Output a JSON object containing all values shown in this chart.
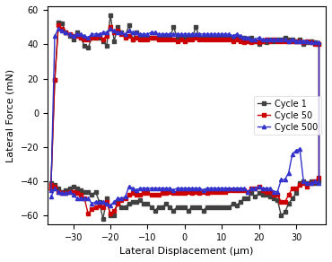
{
  "title": "",
  "xlabel": "Lateral Displacement (μm)",
  "ylabel": "Lateral Force (mN)",
  "xlim": [
    -37,
    38
  ],
  "ylim": [
    -65,
    62
  ],
  "xticks": [
    -30,
    -20,
    -10,
    0,
    10,
    20,
    30
  ],
  "yticks": [
    -60,
    -40,
    -20,
    0,
    20,
    40,
    60
  ],
  "legend_labels": [
    "Cycle 1",
    "Cycle 50",
    "Cycle 500"
  ],
  "colors": [
    "#404040",
    "#cc0000",
    "#3333cc"
  ],
  "marker": "s",
  "cycle1_x": [
    -36,
    -35,
    -34,
    -33,
    -32,
    -31,
    -30,
    -29,
    -28,
    -27,
    -26,
    -25,
    -24,
    -23,
    -22,
    -21,
    -20,
    -19,
    -18,
    -17,
    -16,
    -15,
    -14,
    -13,
    -12,
    -11,
    -10,
    -9,
    -8,
    -7,
    -6,
    -5,
    -4,
    -3,
    -2,
    -1,
    0,
    1,
    2,
    3,
    4,
    5,
    6,
    7,
    8,
    9,
    10,
    11,
    12,
    13,
    14,
    15,
    16,
    17,
    18,
    19,
    20,
    21,
    22,
    23,
    24,
    25,
    26,
    27,
    28,
    29,
    30,
    31,
    32,
    33,
    34,
    35,
    36
  ],
  "cycle1_upper": [
    -41,
    19,
    53,
    52,
    47,
    45,
    43,
    47,
    44,
    39,
    38,
    44,
    44,
    44,
    42,
    39,
    57,
    42,
    50,
    47,
    45,
    51,
    43,
    47,
    44,
    44,
    44,
    44,
    44,
    44,
    44,
    45,
    44,
    50,
    44,
    44,
    44,
    44,
    44,
    50,
    44,
    44,
    44,
    44,
    44,
    44,
    44,
    44,
    44,
    44,
    44,
    44,
    44,
    43,
    44,
    42,
    40,
    42,
    41,
    43,
    42,
    43,
    43,
    44,
    43,
    43,
    42,
    43,
    40,
    41,
    42,
    41,
    40
  ],
  "cycle1_lower": [
    -44,
    -42,
    -44,
    -46,
    -45,
    -44,
    -43,
    -44,
    -45,
    -46,
    -46,
    -48,
    -46,
    -52,
    -62,
    -50,
    -60,
    -60,
    -52,
    -55,
    -55,
    -53,
    -52,
    -52,
    -51,
    -53,
    -53,
    -55,
    -57,
    -55,
    -55,
    -53,
    -55,
    -57,
    -55,
    -55,
    -55,
    -57,
    -55,
    -55,
    -55,
    -57,
    -55,
    -55,
    -55,
    -55,
    -55,
    -55,
    -55,
    -53,
    -54,
    -52,
    -50,
    -50,
    -47,
    -49,
    -47,
    -48,
    -48,
    -49,
    -50,
    -51,
    -60,
    -58,
    -53,
    -50,
    -47,
    -41,
    -40,
    -41,
    -40,
    -41,
    -40
  ],
  "cycle50_x": [
    -36,
    -35,
    -34,
    -33,
    -32,
    -31,
    -30,
    -29,
    -28,
    -27,
    -26,
    -25,
    -24,
    -23,
    -22,
    -21,
    -20,
    -19,
    -18,
    -17,
    -16,
    -15,
    -14,
    -13,
    -12,
    -11,
    -10,
    -9,
    -8,
    -7,
    -6,
    -5,
    -4,
    -3,
    -2,
    -1,
    0,
    1,
    2,
    3,
    4,
    5,
    6,
    7,
    8,
    9,
    10,
    11,
    12,
    13,
    14,
    15,
    16,
    17,
    18,
    19,
    20,
    21,
    22,
    23,
    24,
    25,
    26,
    27,
    28,
    29,
    30,
    31,
    32,
    33,
    34,
    35,
    36
  ],
  "cycle50_upper": [
    -42,
    19,
    51,
    49,
    47,
    46,
    45,
    45,
    44,
    43,
    43,
    44,
    44,
    45,
    43,
    45,
    50,
    47,
    48,
    46,
    44,
    45,
    43,
    44,
    43,
    43,
    43,
    44,
    44,
    43,
    43,
    43,
    43,
    43,
    42,
    43,
    42,
    43,
    43,
    44,
    43,
    43,
    43,
    43,
    43,
    43,
    43,
    43,
    43,
    42,
    43,
    42,
    41,
    42,
    41,
    42,
    41,
    42,
    43,
    42,
    43,
    42,
    42,
    42,
    42,
    42,
    42,
    42,
    41,
    42,
    41,
    40,
    40
  ],
  "cycle50_lower": [
    -44,
    -43,
    -46,
    -47,
    -47,
    -46,
    -46,
    -47,
    -48,
    -50,
    -59,
    -56,
    -55,
    -54,
    -55,
    -52,
    -59,
    -57,
    -53,
    -51,
    -50,
    -48,
    -47,
    -48,
    -48,
    -47,
    -47,
    -48,
    -48,
    -48,
    -47,
    -47,
    -46,
    -47,
    -47,
    -47,
    -47,
    -46,
    -47,
    -46,
    -47,
    -46,
    -47,
    -46,
    -46,
    -46,
    -46,
    -46,
    -45,
    -45,
    -45,
    -45,
    -45,
    -46,
    -44,
    -44,
    -43,
    -45,
    -46,
    -46,
    -48,
    -48,
    -52,
    -52,
    -48,
    -44,
    -44,
    -42,
    -41,
    -43,
    -41,
    -40,
    -38
  ],
  "cycle500_x": [
    -36,
    -35,
    -34,
    -33,
    -32,
    -31,
    -30,
    -29,
    -28,
    -27,
    -26,
    -25,
    -24,
    -23,
    -22,
    -21,
    -20,
    -19,
    -18,
    -17,
    -16,
    -15,
    -14,
    -13,
    -12,
    -11,
    -10,
    -9,
    -8,
    -7,
    -6,
    -5,
    -4,
    -3,
    -2,
    -1,
    0,
    1,
    2,
    3,
    4,
    5,
    6,
    7,
    8,
    9,
    10,
    11,
    12,
    13,
    14,
    15,
    16,
    17,
    18,
    19,
    20,
    21,
    22,
    23,
    24,
    25,
    26,
    27,
    28,
    29,
    30,
    31,
    32,
    33,
    34,
    35,
    36
  ],
  "cycle500_upper": [
    -45,
    45,
    49,
    48,
    47,
    46,
    45,
    46,
    46,
    45,
    44,
    46,
    46,
    46,
    47,
    47,
    49,
    48,
    47,
    47,
    46,
    48,
    47,
    47,
    46,
    46,
    46,
    47,
    47,
    46,
    46,
    46,
    46,
    46,
    46,
    46,
    46,
    46,
    46,
    46,
    46,
    46,
    46,
    46,
    46,
    46,
    46,
    46,
    46,
    45,
    46,
    45,
    44,
    44,
    43,
    43,
    44,
    43,
    43,
    43,
    43,
    43,
    43,
    43,
    42,
    43,
    42,
    42,
    42,
    42,
    41,
    41,
    41
  ],
  "cycle500_lower": [
    -49,
    -44,
    -46,
    -47,
    -47,
    -46,
    -48,
    -50,
    -50,
    -50,
    -50,
    -53,
    -52,
    -52,
    -52,
    -53,
    -54,
    -52,
    -50,
    -50,
    -49,
    -43,
    -44,
    -45,
    -44,
    -44,
    -44,
    -44,
    -44,
    -44,
    -44,
    -44,
    -44,
    -45,
    -44,
    -44,
    -44,
    -44,
    -44,
    -44,
    -44,
    -45,
    -44,
    -44,
    -44,
    -44,
    -44,
    -44,
    -44,
    -44,
    -44,
    -44,
    -44,
    -46,
    -44,
    -44,
    -43,
    -44,
    -44,
    -44,
    -46,
    -46,
    -39,
    -39,
    -35,
    -24,
    -22,
    -21,
    -40,
    -41,
    -41,
    -40,
    -41
  ]
}
